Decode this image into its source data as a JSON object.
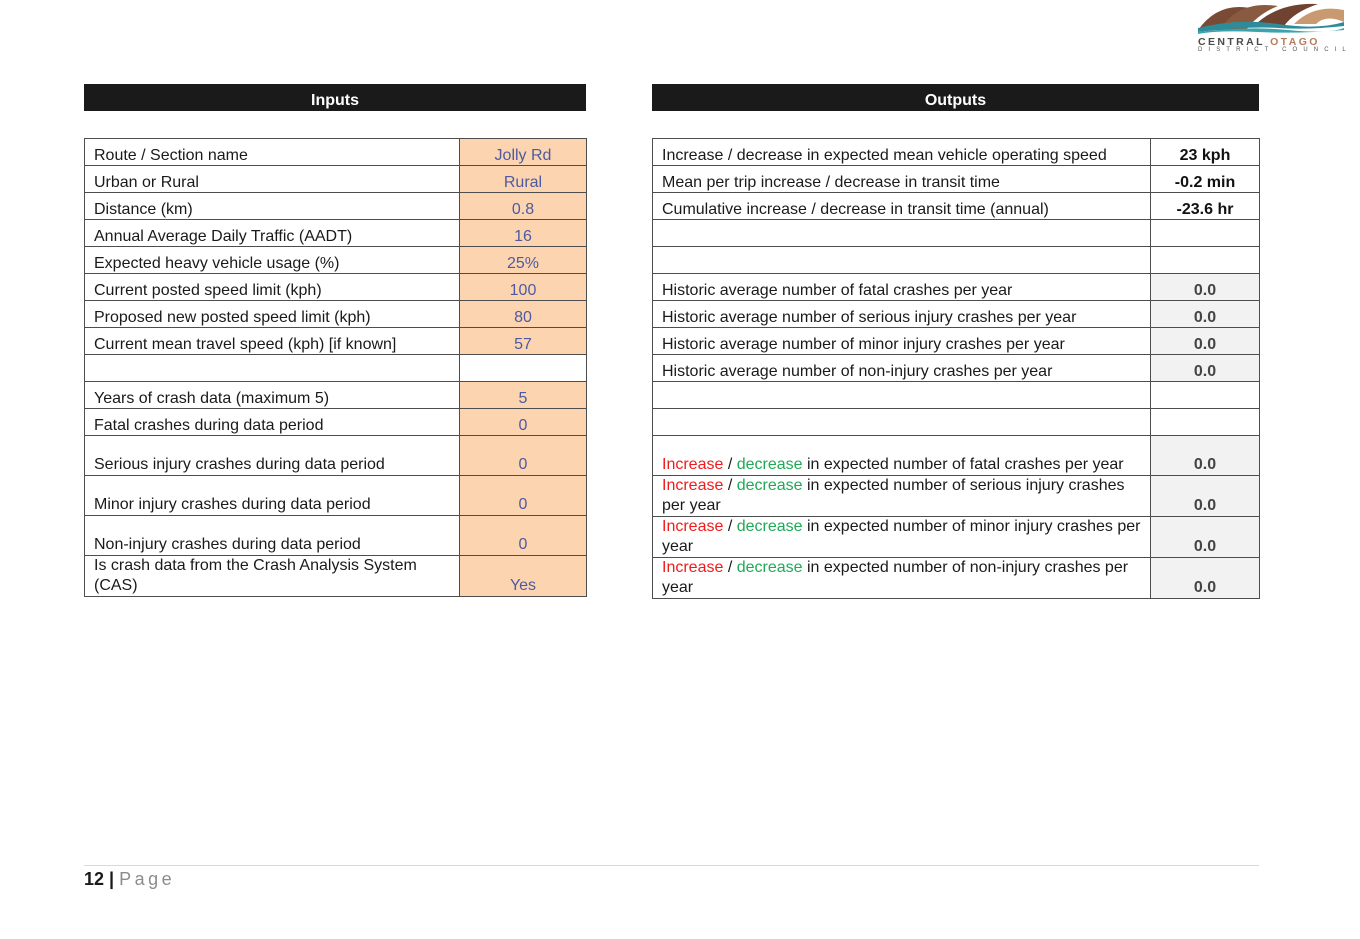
{
  "logo": {
    "word1": "CENTRAL",
    "word2": "OTAGO",
    "subtitle": "DISTRICT COUNCIL",
    "colors": {
      "brown": "#7a4a34",
      "teal": "#2e8c9a",
      "tan": "#c99a72"
    }
  },
  "inputs": {
    "title": "Inputs",
    "rows": [
      {
        "label": "Route / Section name",
        "value": "Jolly Rd"
      },
      {
        "label": "Urban or Rural",
        "value": "Rural"
      },
      {
        "label": "Distance (km)",
        "value": "0.8"
      },
      {
        "label": "Annual Average Daily Traffic (AADT)",
        "value": "16"
      },
      {
        "label": "Expected heavy vehicle usage (%)",
        "value": "25%"
      },
      {
        "label": "Current posted speed limit (kph)",
        "value": "100"
      },
      {
        "label": "Proposed new posted speed limit (kph)",
        "value": "80"
      },
      {
        "label": "Current mean travel speed (kph) [if known]",
        "value": "57"
      },
      {
        "label": "",
        "value": ""
      },
      {
        "label": "Years of crash data (maximum 5)",
        "value": "5"
      },
      {
        "label": "Fatal crashes during data period",
        "value": "0"
      },
      {
        "label": "Serious injury crashes during data period",
        "value": "0"
      },
      {
        "label": "Minor injury crashes during data period",
        "value": "0"
      },
      {
        "label": "Non-injury crashes during data period",
        "value": "0"
      },
      {
        "label": "Is crash data from the Crash Analysis System (CAS)",
        "value": "Yes"
      }
    ]
  },
  "outputs": {
    "title": "Outputs",
    "rows": [
      {
        "label": "Increase / decrease in expected mean vehicle operating speed",
        "value": "23 kph"
      },
      {
        "label": "Mean per trip increase / decrease in transit time",
        "value": "-0.2 min"
      },
      {
        "label": "Cumulative increase / decrease in transit time (annual)",
        "value": "-23.6 hr"
      },
      {
        "label": "",
        "value": ""
      },
      {
        "label": "",
        "value": ""
      },
      {
        "label": "Historic average number of fatal crashes per year",
        "value": "0.0"
      },
      {
        "label": "Historic average number of serious injury crashes per year",
        "value": "0.0"
      },
      {
        "label": "Historic average number of minor injury crashes per year",
        "value": "0.0"
      },
      {
        "label": "Historic average number of non-injury crashes per year",
        "value": "0.0"
      },
      {
        "label": "",
        "value": ""
      },
      {
        "label": "",
        "value": ""
      }
    ],
    "change_rows": [
      {
        "increase": "Increase",
        "sep": " / ",
        "decrease": "decrease",
        "rest": " in expected number of fatal crashes per year",
        "value": "0.0"
      },
      {
        "increase": "Increase",
        "sep": " / ",
        "decrease": "decrease",
        "rest": " in expected number of serious injury crashes per year",
        "value": "0.0"
      },
      {
        "increase": "Increase",
        "sep": " / ",
        "decrease": "decrease",
        "rest": " in expected number of minor injury crashes per year",
        "value": "0.0"
      },
      {
        "increase": "Increase",
        "sep": " / ",
        "decrease": "decrease",
        "rest": " in expected number of non-injury crashes per year",
        "value": "0.0"
      }
    ]
  },
  "footer": {
    "page_number": "12",
    "separator": "|",
    "page_label": "Page"
  }
}
